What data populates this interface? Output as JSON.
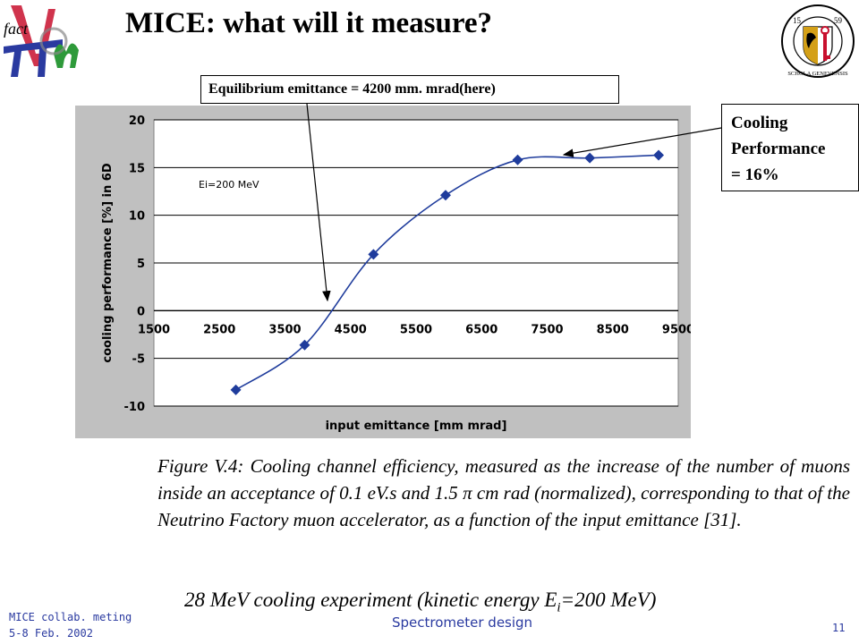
{
  "slide": {
    "title": "MICE: what will it measure?",
    "logo_left_text": "fact",
    "logo_right_year_left": "15",
    "logo_right_year_right": "59",
    "logo_right_ring_text": "SCHOLA GENEVENSIS"
  },
  "callouts": {
    "emittance": "Equilibrium emittance = 4200 mm. mrad(here)",
    "cooling_line1": "Cooling",
    "cooling_line2": "Performance",
    "cooling_line3": "= 16%"
  },
  "caption": {
    "part1": "Figure V.4: Cooling channel efficiency, measured as the increase of the number of muons inside an acceptance of 0.1 eV.s and 1.5 ",
    "pi": "π",
    "part2": "  cm rad (normalized), corresponding to that of the Neutrino Factory muon accelerator, as a function of the input emittance [31]."
  },
  "subtitle": {
    "part1": "28 MeV cooling experiment (kinetic energy E",
    "sub": "i",
    "part2": "=200 MeV)"
  },
  "footer": {
    "left_line1": "MICE collab. meting",
    "left_line2": "5-8 Feb. 2002",
    "center": "Spectrometer design",
    "page_number": "11"
  },
  "colors": {
    "frame_bg": "#c0c0c0",
    "series": "#1f3c9c",
    "grid": "#000000",
    "footer_text": "#2a3aa0"
  },
  "chart_data": {
    "type": "line",
    "title": "",
    "xlabel": "input emittance [mm mrad]",
    "ylabel": "cooling performance [%] in 6D",
    "annotation": "Ei=200 MeV",
    "xlim": [
      1500,
      9500
    ],
    "ylim": [
      -10,
      20
    ],
    "xticks": [
      1500,
      2500,
      3500,
      4500,
      5500,
      6500,
      7500,
      8500,
      9500
    ],
    "yticks": [
      -10,
      -5,
      0,
      5,
      10,
      15,
      20
    ],
    "grid": true,
    "legend": "none",
    "series": [
      {
        "x": [
          2750,
          3800,
          4850,
          5950,
          7050,
          8150,
          9200
        ],
        "y": [
          -8.3,
          -3.6,
          5.9,
          12.1,
          15.8,
          16.0,
          16.3
        ]
      }
    ]
  }
}
